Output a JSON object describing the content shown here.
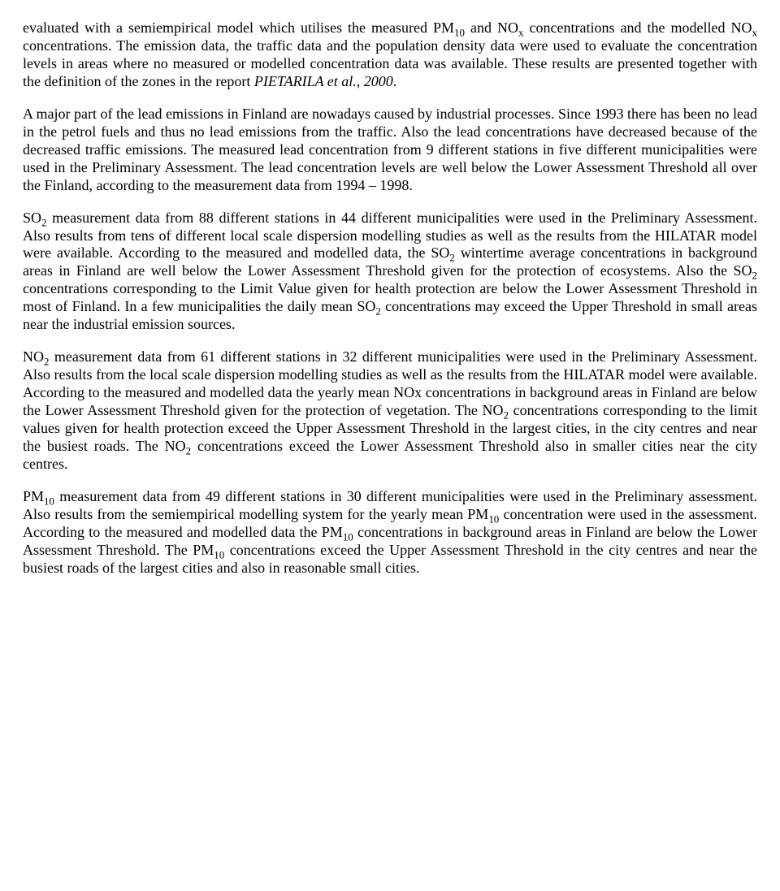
{
  "typography": {
    "font_family": "Times New Roman",
    "font_size_pt": 13,
    "line_height": 1.22,
    "text_align": "justify",
    "color": "#000000",
    "background": "#ffffff"
  },
  "p1": {
    "t1": "evaluated with a semiempirical model which utilises the measured PM",
    "sub1": "10",
    "t2": " and NO",
    "sub2": "x",
    "t3": " concentrations and the modelled NO",
    "sub3": "x",
    "t4": " concentrations. The emission data, the traffic data and the population density data were used to evaluate the concentration levels in areas where no measured or modelled concentration data was available. These results are presented together with the definition of the zones in the report ",
    "italic": "PIETARILA et al., 2000",
    "t5": "."
  },
  "p2": {
    "t1": "A major part of the lead emissions in Finland are nowadays caused by industrial processes. Since 1993 there has been no lead in the petrol fuels and thus no lead emissions from the traffic. Also the lead concentrations have decreased because of the decreased traffic emissions. The measured lead concentration from 9 different stations in five different municipalities were used in the Preliminary Assessment. The lead concentration levels are well below the Lower Assessment Threshold all over the Finland, according to the measurement data from 1994 – 1998."
  },
  "p3": {
    "t1": "SO",
    "sub1": "2",
    "t2": " measurement data from 88 different stations in 44 different municipalities were used in the Preliminary Assessment. Also results from tens of different local scale dispersion modelling studies as well as the results from the HILATAR model were available. According to the measured and modelled data, the SO",
    "sub2": "2",
    "t3": " wintertime average concentrations in background areas in Finland are well below the Lower Assessment Threshold given for the protection of ecosystems. Also the SO",
    "sub3": "2",
    "t4": " concentrations corresponding to the Limit Value given for health protection are below the Lower Assessment Threshold in most of Finland. In a few municipalities the daily mean SO",
    "sub4": "2",
    "t5": " concentrations may exceed the Upper Threshold in small areas near the industrial emission sources."
  },
  "p4": {
    "t1": "NO",
    "sub1": "2",
    "t2": " measurement data from 61 different stations in 32 different municipalities were used in the Preliminary Assessment. Also results from the local scale dispersion modelling studies as well as the results from the HILATAR model were available. According to the measured and modelled data the yearly mean NOx concentrations in background areas in Finland are below the Lower Assessment Threshold given for the protection of vegetation. The NO",
    "sub2": "2",
    "t3": " concentrations corresponding to the limit values given for health protection exceed the Upper Assessment Threshold in the largest cities, in the city centres and near the busiest roads. The NO",
    "sub3": "2",
    "t4": " concentrations exceed the Lower Assessment Threshold also in smaller cities near the city centres."
  },
  "p5": {
    "t1": "PM",
    "sub1": "10",
    "t2": " measurement data from 49 different stations in 30 different municipalities were used in the Preliminary assessment. Also results from the semiempirical modelling system for the yearly mean PM",
    "sub2": "10",
    "t3": " concentration were used in the assessment. According to the measured and modelled data the PM",
    "sub3": "10",
    "t4": " concentrations in background areas in Finland are below the Lower Assessment Threshold. The PM",
    "sub4": "10",
    "t5": " concentrations exceed the Upper Assessment Threshold in the city centres and near the busiest roads of the largest cities and also in reasonable small cities."
  }
}
